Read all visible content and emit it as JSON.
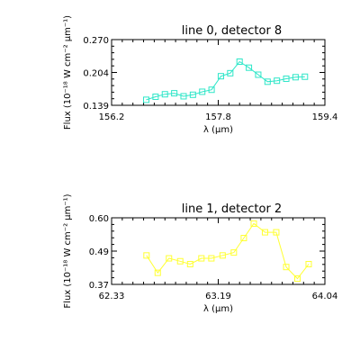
{
  "chart_data": [
    {
      "type": "line",
      "title": "line 0, detector 8",
      "xlabel": "λ (μm)",
      "ylabel": "Flux (10⁻¹⁸ W cm⁻² μm⁻¹)",
      "xlim": [
        156.2,
        159.4
      ],
      "ylim": [
        0.139,
        0.27
      ],
      "xticks": [
        "156.2",
        "157.8",
        "159.4"
      ],
      "yticks": [
        "0.139",
        "0.204",
        "0.270"
      ],
      "color": "#2ee6c8",
      "marker": "square",
      "series": [
        {
          "x": [
            156.72,
            156.86,
            157.0,
            157.14,
            157.28,
            157.42,
            157.56,
            157.7,
            157.84,
            157.98,
            158.12,
            158.26,
            158.4,
            158.54,
            158.68,
            158.82,
            158.96,
            159.1
          ],
          "values": [
            0.15,
            0.156,
            0.161,
            0.163,
            0.157,
            0.16,
            0.166,
            0.17,
            0.197,
            0.203,
            0.226,
            0.214,
            0.2,
            0.186,
            0.188,
            0.192,
            0.195,
            0.196
          ]
        }
      ]
    },
    {
      "type": "line",
      "title": "line 1, detector 2",
      "xlabel": "λ (μm)",
      "ylabel": "Flux (10⁻¹⁸ W cm⁻² μm⁻¹)",
      "xlim": [
        62.33,
        64.04
      ],
      "ylim": [
        0.37,
        0.6
      ],
      "xticks": [
        "62.33",
        "63.19",
        "64.04"
      ],
      "yticks": [
        "0.37",
        "0.49",
        "0.60"
      ],
      "color": "#ffff33",
      "marker": "square",
      "series": [
        {
          "x": [
            62.61,
            62.7,
            62.79,
            62.88,
            62.96,
            63.05,
            63.13,
            63.22,
            63.31,
            63.39,
            63.47,
            63.56,
            63.65,
            63.73,
            63.82,
            63.91
          ],
          "values": [
            0.47,
            0.41,
            0.46,
            0.45,
            0.44,
            0.46,
            0.46,
            0.47,
            0.48,
            0.53,
            0.58,
            0.55,
            0.55,
            0.43,
            0.39,
            0.44
          ]
        }
      ]
    }
  ]
}
